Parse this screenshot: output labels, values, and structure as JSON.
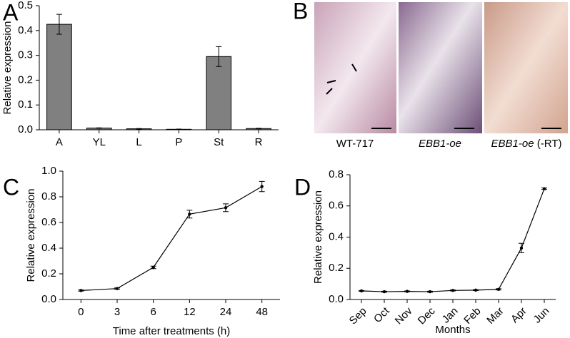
{
  "chart_data": [
    {
      "type": "bar",
      "panel": "A",
      "ylabel": "Relative expression",
      "categories": [
        "A",
        "YL",
        "L",
        "P",
        "St",
        "R"
      ],
      "values": [
        0.425,
        0.007,
        0.004,
        0.002,
        0.295,
        0.005
      ],
      "errors": [
        0.04,
        0.001,
        0.001,
        0.001,
        0.04,
        0.001
      ],
      "color": "#808080",
      "ylim": [
        0,
        0.5
      ],
      "yticks": [
        {
          "value": 0,
          "label": "0.0"
        },
        0.1,
        0.2,
        0.3,
        0.4,
        0.5
      ]
    },
    {
      "type": "line",
      "panel": "C",
      "ylabel": "Relative expression",
      "xlabel": "Time after treatments (h)",
      "categories": [
        "0",
        "3",
        "6",
        "12",
        "24",
        "48"
      ],
      "values": [
        0.07,
        0.085,
        0.25,
        0.665,
        0.715,
        0.88
      ],
      "errors": [
        0.005,
        0.005,
        0.01,
        0.03,
        0.03,
        0.04
      ],
      "color": "#000000",
      "ylim": [
        0,
        1.0
      ],
      "yticks": [
        {
          "value": 0,
          "label": "0.0"
        },
        0.2,
        0.4,
        0.6,
        0.8,
        {
          "value": 1.0,
          "label": "1.0"
        }
      ]
    },
    {
      "type": "line",
      "panel": "D",
      "ylabel": "Relative expression",
      "xlabel": "Months",
      "categories": [
        "Sep",
        "Oct",
        "Nov",
        "Dec",
        "Jan",
        "Feb",
        "Mar",
        "Apr",
        "Jun"
      ],
      "values": [
        0.055,
        0.05,
        0.052,
        0.05,
        0.058,
        0.06,
        0.065,
        0.33,
        0.71
      ],
      "errors": [
        0.003,
        0.003,
        0.003,
        0.003,
        0.003,
        0.003,
        0.004,
        0.03,
        0.005
      ],
      "color": "#000000",
      "ylim": [
        0,
        0.8
      ],
      "yticks": [
        {
          "value": 0,
          "label": "0.0"
        },
        0.2,
        0.4,
        0.6,
        0.8
      ]
    }
  ],
  "panel_b": {
    "letter": "B",
    "captions": [
      {
        "text": "WT-717"
      },
      {
        "text": "EBB1-oe"
      },
      {
        "text": "EBB1-oe",
        "suffix": "(-RT)"
      }
    ]
  }
}
